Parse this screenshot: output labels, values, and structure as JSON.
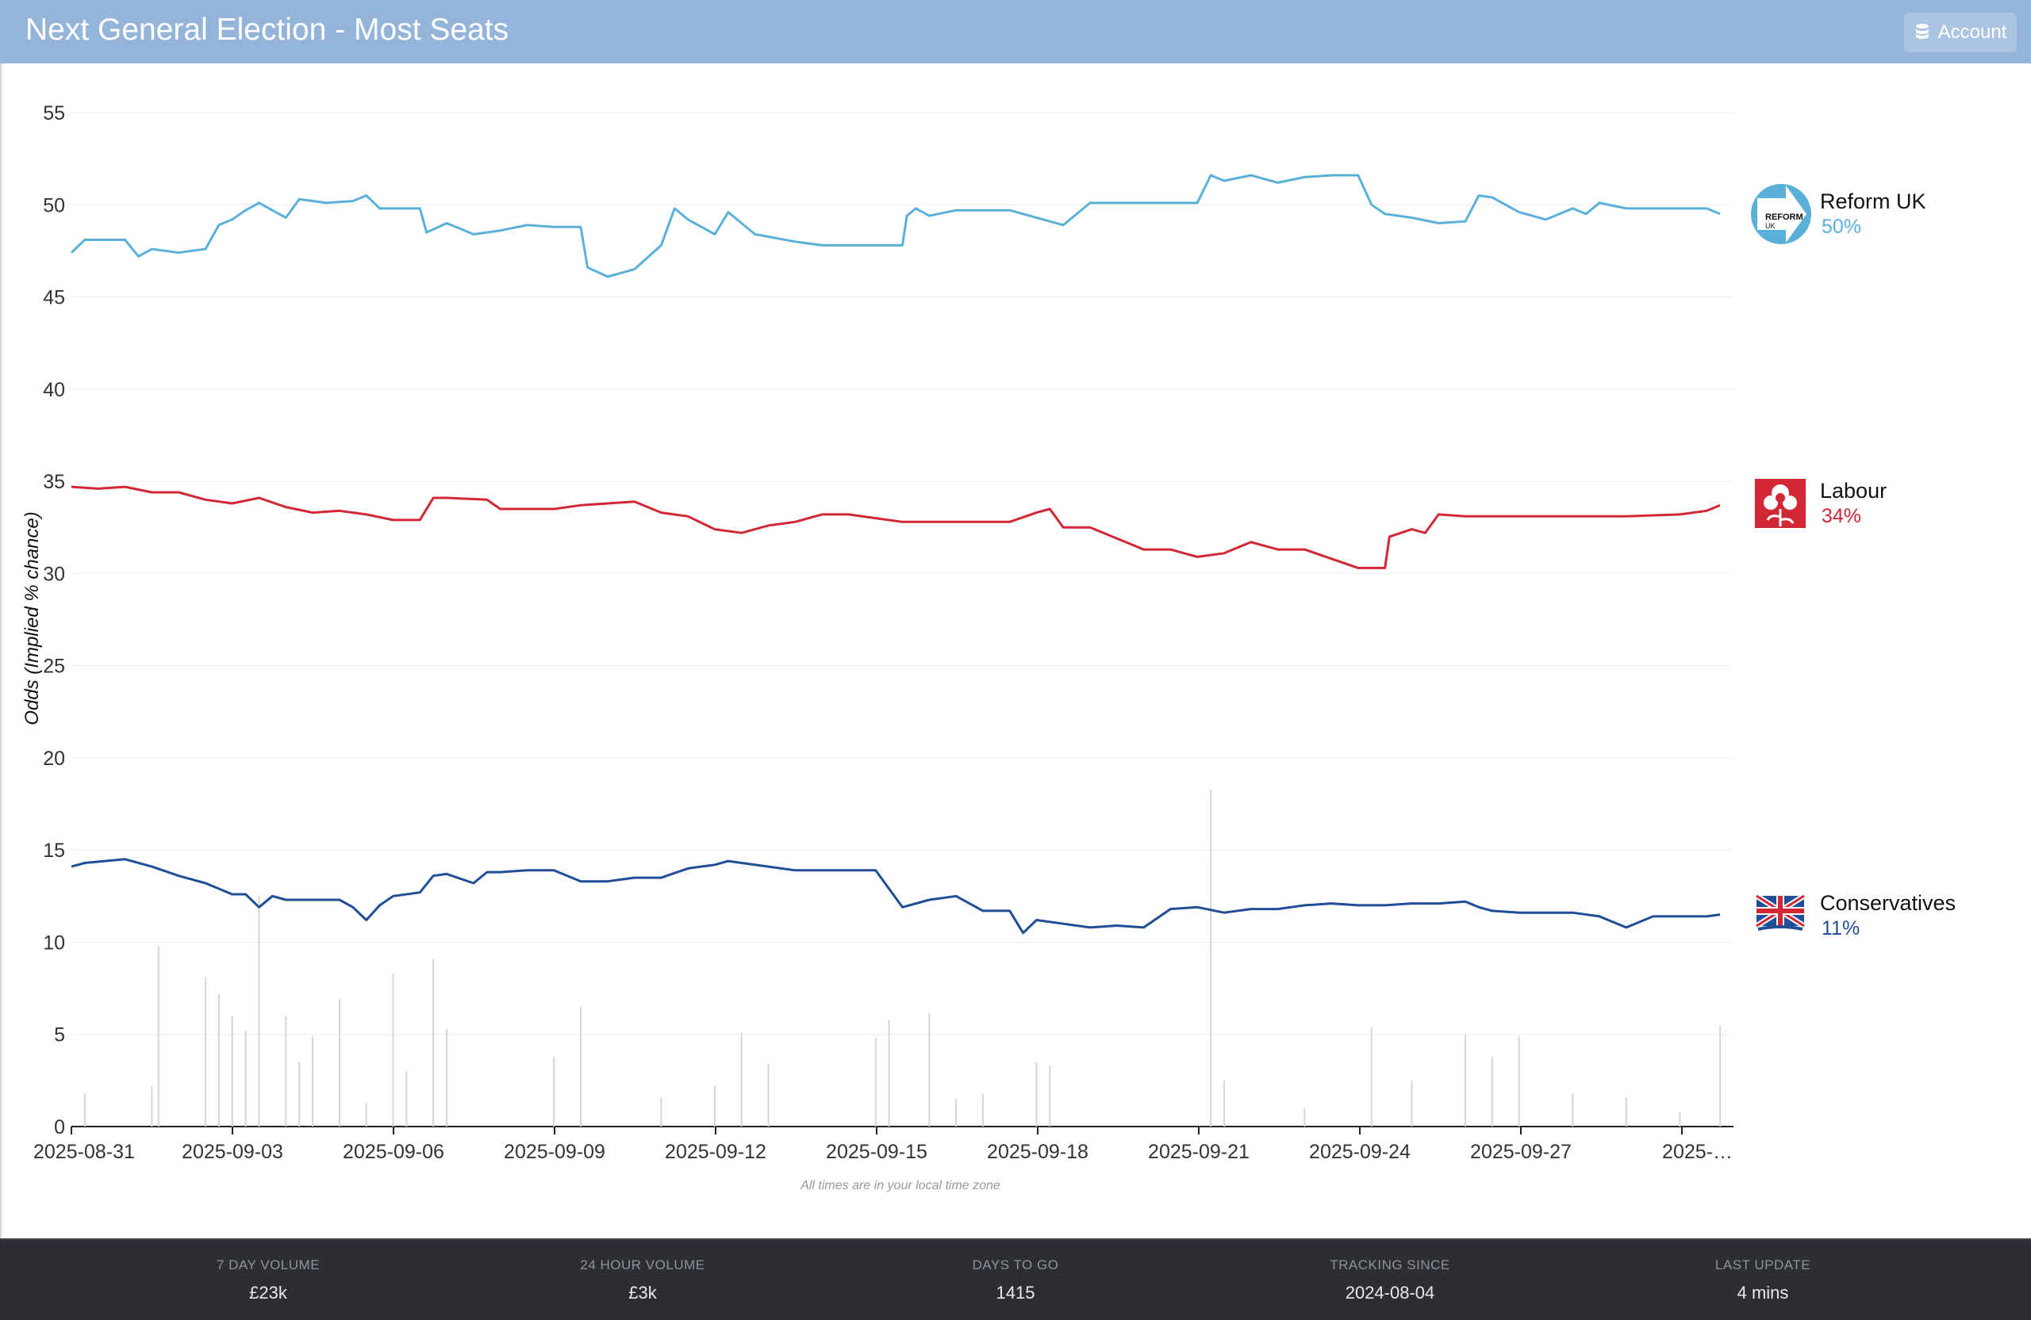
{
  "header": {
    "title": "Next General Election - Most Seats",
    "account_label": "Account"
  },
  "colors": {
    "header_bg": "#94b4da",
    "reform": "#5ab0d8",
    "labour": "#d22734",
    "conservatives": "#1f4e96",
    "volume": "#d6d6d6",
    "footer_bg": "#2c2e33"
  },
  "chart_data": {
    "type": "line",
    "ylabel": "Odds (Implied % chance)",
    "ylim": [
      0,
      55
    ],
    "yticks": [
      0,
      5,
      10,
      15,
      20,
      25,
      30,
      35,
      40,
      45,
      50,
      55
    ],
    "xlim": [
      "2025-08-31",
      "2025-10-01"
    ],
    "xtick_labels": [
      "2025-08-31",
      "2025-09-03",
      "2025-09-06",
      "2025-09-09",
      "2025-09-12",
      "2025-09-15",
      "2025-09-18",
      "2025-09-21",
      "2025-09-24",
      "2025-09-27",
      "2025-…"
    ],
    "note": "All times are in your local time zone",
    "grid": true,
    "series": [
      {
        "name": "Reform UK",
        "label": "50%",
        "color": "#5ab0d8",
        "icon": "reform-uk-logo",
        "points": [
          [
            "2025-08-31",
            47.4
          ],
          [
            "2025-08-31T06:00",
            48.1
          ],
          [
            "2025-09-01",
            48.1
          ],
          [
            "2025-09-01T06:00",
            47.2
          ],
          [
            "2025-09-01T12:00",
            47.6
          ],
          [
            "2025-09-02",
            47.4
          ],
          [
            "2025-09-02T12:00",
            47.6
          ],
          [
            "2025-09-02T18:00",
            48.9
          ],
          [
            "2025-09-03",
            49.2
          ],
          [
            "2025-09-03T06:00",
            49.7
          ],
          [
            "2025-09-03T12:00",
            50.1
          ],
          [
            "2025-09-04",
            49.3
          ],
          [
            "2025-09-04T06:00",
            50.3
          ],
          [
            "2025-09-04T18:00",
            50.1
          ],
          [
            "2025-09-05T06:00",
            50.2
          ],
          [
            "2025-09-05T12:00",
            50.5
          ],
          [
            "2025-09-05T18:00",
            49.8
          ],
          [
            "2025-09-06T12:00",
            49.8
          ],
          [
            "2025-09-06T15:00",
            48.5
          ],
          [
            "2025-09-07",
            49.0
          ],
          [
            "2025-09-07T12:00",
            48.4
          ],
          [
            "2025-09-08",
            48.6
          ],
          [
            "2025-09-08T12:00",
            48.9
          ],
          [
            "2025-09-09",
            48.8
          ],
          [
            "2025-09-09T12:00",
            48.8
          ],
          [
            "2025-09-09T15:00",
            46.6
          ],
          [
            "2025-09-10",
            46.1
          ],
          [
            "2025-09-10T12:00",
            46.5
          ],
          [
            "2025-09-11",
            47.8
          ],
          [
            "2025-09-11T06:00",
            49.8
          ],
          [
            "2025-09-11T12:00",
            49.2
          ],
          [
            "2025-09-12",
            48.4
          ],
          [
            "2025-09-12T06:00",
            49.6
          ],
          [
            "2025-09-12T18:00",
            48.4
          ],
          [
            "2025-09-13T12:00",
            48.0
          ],
          [
            "2025-09-13T18:00",
            47.9
          ],
          [
            "2025-09-14",
            47.8
          ],
          [
            "2025-09-15T12:00",
            47.8
          ],
          [
            "2025-09-15T14:00",
            49.4
          ],
          [
            "2025-09-15T18:00",
            49.8
          ],
          [
            "2025-09-16",
            49.4
          ],
          [
            "2025-09-16T12:00",
            49.7
          ],
          [
            "2025-09-17",
            49.7
          ],
          [
            "2025-09-17T12:00",
            49.7
          ],
          [
            "2025-09-18",
            49.3
          ],
          [
            "2025-09-18T12:00",
            48.9
          ],
          [
            "2025-09-19",
            50.1
          ],
          [
            "2025-09-20",
            50.1
          ],
          [
            "2025-09-21",
            50.1
          ],
          [
            "2025-09-21T06:00",
            51.6
          ],
          [
            "2025-09-21T12:00",
            51.3
          ],
          [
            "2025-09-22",
            51.6
          ],
          [
            "2025-09-22T12:00",
            51.2
          ],
          [
            "2025-09-23",
            51.5
          ],
          [
            "2025-09-23T12:00",
            51.6
          ],
          [
            "2025-09-24",
            51.6
          ],
          [
            "2025-09-24T06:00",
            50.0
          ],
          [
            "2025-09-24T12:00",
            49.5
          ],
          [
            "2025-09-25",
            49.3
          ],
          [
            "2025-09-25T12:00",
            49.0
          ],
          [
            "2025-09-26",
            49.1
          ],
          [
            "2025-09-26T06:00",
            50.5
          ],
          [
            "2025-09-26T12:00",
            50.4
          ],
          [
            "2025-09-27",
            49.6
          ],
          [
            "2025-09-27T12:00",
            49.2
          ],
          [
            "2025-09-28",
            49.8
          ],
          [
            "2025-09-28T06:00",
            49.5
          ],
          [
            "2025-09-28T12:00",
            50.1
          ],
          [
            "2025-09-29",
            49.8
          ],
          [
            "2025-09-30",
            49.8
          ],
          [
            "2025-09-30T12:00",
            49.8
          ],
          [
            "2025-09-30T18:00",
            49.5
          ]
        ]
      },
      {
        "name": "Labour",
        "label": "34%",
        "color": "#d22734",
        "icon": "labour-rose-logo",
        "points": [
          [
            "2025-08-31",
            34.7
          ],
          [
            "2025-08-31T12:00",
            34.6
          ],
          [
            "2025-09-01",
            34.7
          ],
          [
            "2025-09-01T12:00",
            34.4
          ],
          [
            "2025-09-02",
            34.4
          ],
          [
            "2025-09-02T12:00",
            34.0
          ],
          [
            "2025-09-03",
            33.8
          ],
          [
            "2025-09-03T12:00",
            34.1
          ],
          [
            "2025-09-04",
            33.6
          ],
          [
            "2025-09-04T12:00",
            33.3
          ],
          [
            "2025-09-05",
            33.4
          ],
          [
            "2025-09-05T12:00",
            33.2
          ],
          [
            "2025-09-06",
            32.9
          ],
          [
            "2025-09-06T12:00",
            32.9
          ],
          [
            "2025-09-06T18:00",
            34.1
          ],
          [
            "2025-09-07",
            34.1
          ],
          [
            "2025-09-07T18:00",
            34.0
          ],
          [
            "2025-09-08",
            33.5
          ],
          [
            "2025-09-09",
            33.5
          ],
          [
            "2025-09-09T12:00",
            33.7
          ],
          [
            "2025-09-10",
            33.8
          ],
          [
            "2025-09-10T12:00",
            33.9
          ],
          [
            "2025-09-11",
            33.3
          ],
          [
            "2025-09-11T12:00",
            33.1
          ],
          [
            "2025-09-12",
            32.4
          ],
          [
            "2025-09-12T12:00",
            32.2
          ],
          [
            "2025-09-13",
            32.6
          ],
          [
            "2025-09-13T12:00",
            32.8
          ],
          [
            "2025-09-14",
            33.2
          ],
          [
            "2025-09-14T12:00",
            33.2
          ],
          [
            "2025-09-15",
            33.0
          ],
          [
            "2025-09-15T12:00",
            32.8
          ],
          [
            "2025-09-16",
            32.8
          ],
          [
            "2025-09-17",
            32.8
          ],
          [
            "2025-09-17T12:00",
            32.8
          ],
          [
            "2025-09-18",
            33.3
          ],
          [
            "2025-09-18T06:00",
            33.5
          ],
          [
            "2025-09-18T12:00",
            32.5
          ],
          [
            "2025-09-19",
            32.5
          ],
          [
            "2025-09-20",
            31.3
          ],
          [
            "2025-09-20T12:00",
            31.3
          ],
          [
            "2025-09-21",
            30.9
          ],
          [
            "2025-09-21T12:00",
            31.1
          ],
          [
            "2025-09-22",
            31.7
          ],
          [
            "2025-09-22T12:00",
            31.3
          ],
          [
            "2025-09-23",
            31.3
          ],
          [
            "2025-09-24",
            30.3
          ],
          [
            "2025-09-24T12:00",
            30.3
          ],
          [
            "2025-09-24T14:00",
            32.0
          ],
          [
            "2025-09-25",
            32.4
          ],
          [
            "2025-09-25T06:00",
            32.2
          ],
          [
            "2025-09-25T12:00",
            33.2
          ],
          [
            "2025-09-26",
            33.1
          ],
          [
            "2025-09-27",
            33.1
          ],
          [
            "2025-09-28",
            33.1
          ],
          [
            "2025-09-29",
            33.1
          ],
          [
            "2025-09-30",
            33.2
          ],
          [
            "2025-09-30T12:00",
            33.4
          ],
          [
            "2025-09-30T18:00",
            33.7
          ]
        ]
      },
      {
        "name": "Conservatives",
        "label": "11%",
        "color": "#1f4e96",
        "icon": "conservatives-tree-logo",
        "points": [
          [
            "2025-08-31",
            14.1
          ],
          [
            "2025-08-31T06:00",
            14.3
          ],
          [
            "2025-09-01",
            14.5
          ],
          [
            "2025-09-01T12:00",
            14.1
          ],
          [
            "2025-09-02",
            13.6
          ],
          [
            "2025-09-02T12:00",
            13.2
          ],
          [
            "2025-09-03",
            12.6
          ],
          [
            "2025-09-03T06:00",
            12.6
          ],
          [
            "2025-09-03T12:00",
            11.9
          ],
          [
            "2025-09-03T18:00",
            12.5
          ],
          [
            "2025-09-04",
            12.3
          ],
          [
            "2025-09-05",
            12.3
          ],
          [
            "2025-09-05T06:00",
            11.9
          ],
          [
            "2025-09-05T12:00",
            11.2
          ],
          [
            "2025-09-05T18:00",
            12.0
          ],
          [
            "2025-09-06",
            12.5
          ],
          [
            "2025-09-06T12:00",
            12.7
          ],
          [
            "2025-09-06T18:00",
            13.6
          ],
          [
            "2025-09-07",
            13.7
          ],
          [
            "2025-09-07T12:00",
            13.2
          ],
          [
            "2025-09-07T18:00",
            13.8
          ],
          [
            "2025-09-08",
            13.8
          ],
          [
            "2025-09-08T12:00",
            13.9
          ],
          [
            "2025-09-09",
            13.9
          ],
          [
            "2025-09-09T12:00",
            13.3
          ],
          [
            "2025-09-10",
            13.3
          ],
          [
            "2025-09-10T12:00",
            13.5
          ],
          [
            "2025-09-11",
            13.5
          ],
          [
            "2025-09-11T12:00",
            14.0
          ],
          [
            "2025-09-12",
            14.2
          ],
          [
            "2025-09-12T06:00",
            14.4
          ],
          [
            "2025-09-12T12:00",
            14.3
          ],
          [
            "2025-09-13",
            14.1
          ],
          [
            "2025-09-13T12:00",
            13.9
          ],
          [
            "2025-09-14",
            13.9
          ],
          [
            "2025-09-15",
            13.9
          ],
          [
            "2025-09-15T12:00",
            11.9
          ],
          [
            "2025-09-16",
            12.3
          ],
          [
            "2025-09-16T12:00",
            12.5
          ],
          [
            "2025-09-17",
            11.7
          ],
          [
            "2025-09-17T12:00",
            11.7
          ],
          [
            "2025-09-17T18:00",
            10.5
          ],
          [
            "2025-09-18",
            11.2
          ],
          [
            "2025-09-18T12:00",
            11.0
          ],
          [
            "2025-09-19",
            10.8
          ],
          [
            "2025-09-19T12:00",
            10.9
          ],
          [
            "2025-09-20",
            10.8
          ],
          [
            "2025-09-20T12:00",
            11.8
          ],
          [
            "2025-09-21",
            11.9
          ],
          [
            "2025-09-21T12:00",
            11.6
          ],
          [
            "2025-09-22",
            11.8
          ],
          [
            "2025-09-22T12:00",
            11.8
          ],
          [
            "2025-09-23",
            12.0
          ],
          [
            "2025-09-23T12:00",
            12.1
          ],
          [
            "2025-09-24",
            12.0
          ],
          [
            "2025-09-24T12:00",
            12.0
          ],
          [
            "2025-09-25",
            12.1
          ],
          [
            "2025-09-25T12:00",
            12.1
          ],
          [
            "2025-09-26",
            12.2
          ],
          [
            "2025-09-26T06:00",
            11.9
          ],
          [
            "2025-09-26T12:00",
            11.7
          ],
          [
            "2025-09-27",
            11.6
          ],
          [
            "2025-09-28",
            11.6
          ],
          [
            "2025-09-28T12:00",
            11.4
          ],
          [
            "2025-09-29",
            10.8
          ],
          [
            "2025-09-29T12:00",
            11.4
          ],
          [
            "2025-09-30",
            11.4
          ],
          [
            "2025-09-30T12:00",
            11.4
          ],
          [
            "2025-09-30T18:00",
            11.5
          ]
        ]
      }
    ],
    "volume": {
      "color": "#d6d6d6",
      "points": [
        [
          "2025-08-31T06:00",
          1.8
        ],
        [
          "2025-09-01T12:00",
          2.2
        ],
        [
          "2025-09-01T15:00",
          9.8
        ],
        [
          "2025-09-02T12:00",
          8.1
        ],
        [
          "2025-09-02T18:00",
          7.2
        ],
        [
          "2025-09-03",
          6.0
        ],
        [
          "2025-09-03T06:00",
          5.2
        ],
        [
          "2025-09-03T12:00",
          12.5
        ],
        [
          "2025-09-04",
          6.0
        ],
        [
          "2025-09-04T06:00",
          3.5
        ],
        [
          "2025-09-04T12:00",
          4.9
        ],
        [
          "2025-09-05",
          6.9
        ],
        [
          "2025-09-05T12:00",
          1.3
        ],
        [
          "2025-09-06",
          8.3
        ],
        [
          "2025-09-06T06:00",
          3.0
        ],
        [
          "2025-09-06T18:00",
          9.1
        ],
        [
          "2025-09-07",
          5.3
        ],
        [
          "2025-09-09",
          3.8
        ],
        [
          "2025-09-09T12:00",
          6.5
        ],
        [
          "2025-09-11",
          1.6
        ],
        [
          "2025-09-12",
          2.2
        ],
        [
          "2025-09-12T12:00",
          5.1
        ],
        [
          "2025-09-13",
          3.4
        ],
        [
          "2025-09-15",
          4.8
        ],
        [
          "2025-09-15T06:00",
          5.8
        ],
        [
          "2025-09-16",
          6.2
        ],
        [
          "2025-09-16T12:00",
          1.5
        ],
        [
          "2025-09-17",
          1.8
        ],
        [
          "2025-09-18",
          3.5
        ],
        [
          "2025-09-18T06:00",
          3.3
        ],
        [
          "2025-09-21T06:00",
          18.3
        ],
        [
          "2025-09-21T12:00",
          2.5
        ],
        [
          "2025-09-23",
          1.0
        ],
        [
          "2025-09-24T06:00",
          5.4
        ],
        [
          "2025-09-25",
          2.5
        ],
        [
          "2025-09-26",
          5.0
        ],
        [
          "2025-09-26T12:00",
          3.8
        ],
        [
          "2025-09-27",
          4.9
        ],
        [
          "2025-09-28",
          1.8
        ],
        [
          "2025-09-29",
          1.6
        ],
        [
          "2025-09-30",
          0.8
        ],
        [
          "2025-09-30T18:00",
          5.5
        ]
      ]
    }
  },
  "footer": {
    "stats": [
      {
        "label": "7 DAY VOLUME",
        "value": "£23k"
      },
      {
        "label": "24 HOUR VOLUME",
        "value": "£3k"
      },
      {
        "label": "DAYS TO GO",
        "value": "1415"
      },
      {
        "label": "TRACKING SINCE",
        "value": "2024-08-04"
      },
      {
        "label": "LAST UPDATE",
        "value": "4 mins"
      }
    ]
  }
}
